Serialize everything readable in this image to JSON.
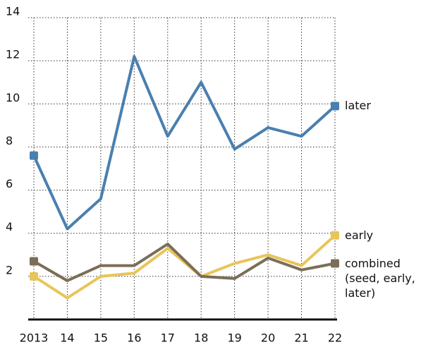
{
  "chart_data": {
    "type": "line",
    "categories": [
      "2013",
      "14",
      "15",
      "16",
      "17",
      "18",
      "19",
      "20",
      "21",
      "22"
    ],
    "series": [
      {
        "name": "later",
        "color": "#4a7fb0",
        "values": [
          7.6,
          4.2,
          5.6,
          12.2,
          8.5,
          11.0,
          7.9,
          8.9,
          8.5,
          9.9
        ]
      },
      {
        "name": "early",
        "color": "#e8c55a",
        "values": [
          2.0,
          1.0,
          2.0,
          2.15,
          3.3,
          2.0,
          2.6,
          3.0,
          2.5,
          3.9
        ]
      },
      {
        "name": "combined (seed, early, later)",
        "color": "#7a6e58",
        "values": [
          2.7,
          1.8,
          2.5,
          2.5,
          3.5,
          2.0,
          1.9,
          2.85,
          2.3,
          2.6
        ]
      }
    ],
    "ylim": [
      0,
      14
    ],
    "yticks": [
      2,
      4,
      6,
      8,
      10,
      12,
      14
    ],
    "grid": true
  }
}
